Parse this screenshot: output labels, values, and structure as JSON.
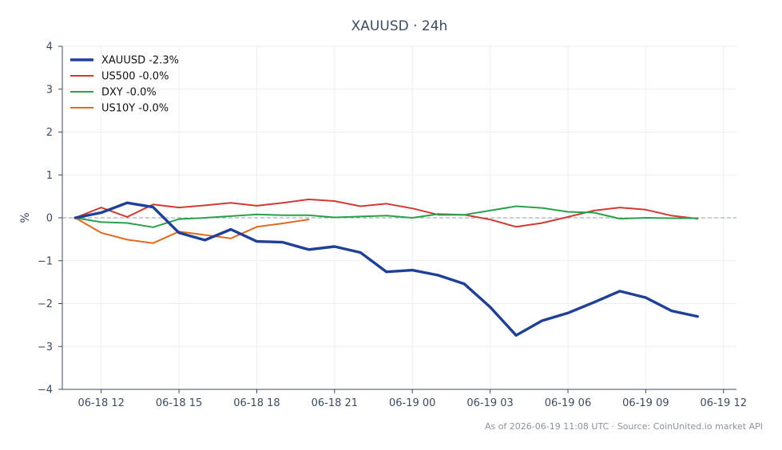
{
  "chart_data": {
    "type": "line",
    "title": "XAUUSD · 24h",
    "ylabel": "%",
    "xlabel": "",
    "ylim": [
      -4,
      4
    ],
    "yticks": [
      4,
      3,
      2,
      1,
      0,
      -1,
      -2,
      -3,
      -4
    ],
    "ytick_labels": [
      "4",
      "3",
      "2",
      "1",
      "0",
      "−1",
      "−2",
      "−3",
      "−4"
    ],
    "xlim": [
      10.5,
      36.5
    ],
    "xticks": [
      12,
      15,
      18,
      21,
      24,
      27,
      30,
      33,
      36
    ],
    "xtick_labels": [
      "06-18 12",
      "06-18 15",
      "06-18 18",
      "06-18 21",
      "06-19 00",
      "06-19 03",
      "06-19 06",
      "06-19 09",
      "06-19 12"
    ],
    "grid": true,
    "legend_position": "top-left",
    "zero_line": true,
    "series": [
      {
        "name": "XAUUSD -2.3%",
        "color": "#1f3f99",
        "emphasis": true,
        "x": [
          11,
          12,
          13,
          14,
          15,
          16,
          17,
          18,
          19,
          20,
          21,
          22,
          23,
          24,
          25,
          26,
          27,
          28,
          29,
          30,
          31,
          32,
          33,
          34,
          35
        ],
        "values": [
          0.0,
          0.12,
          0.35,
          0.25,
          -0.35,
          -0.52,
          -0.27,
          -0.55,
          -0.57,
          -0.74,
          -0.67,
          -0.81,
          -1.26,
          -1.22,
          -1.34,
          -1.54,
          -2.08,
          -2.74,
          -2.4,
          -2.22,
          -1.97,
          -1.71,
          -1.86,
          -2.17,
          -2.3
        ]
      },
      {
        "name": "US500 -0.0%",
        "color": "#d03a32",
        "emphasis": false,
        "x": [
          11,
          12,
          13,
          14,
          15,
          16,
          17,
          18,
          19,
          20,
          21,
          22,
          23,
          24,
          25,
          26,
          27,
          28,
          29,
          30,
          31,
          32,
          33,
          34,
          35
        ],
        "values": [
          0.0,
          0.24,
          0.02,
          0.31,
          0.24,
          0.29,
          0.35,
          0.28,
          0.35,
          0.43,
          0.39,
          0.27,
          0.33,
          0.22,
          0.07,
          0.07,
          -0.04,
          -0.21,
          -0.12,
          0.02,
          0.17,
          0.24,
          0.19,
          0.05,
          -0.02
        ]
      },
      {
        "name": "DXY -0.0%",
        "color": "#2aa04c",
        "emphasis": false,
        "x": [
          11,
          12,
          13,
          14,
          15,
          16,
          17,
          18,
          19,
          20,
          21,
          22,
          23,
          24,
          25,
          26,
          27,
          28,
          29,
          30,
          31,
          32,
          33,
          34,
          35
        ],
        "values": [
          0.0,
          -0.1,
          -0.12,
          -0.22,
          -0.03,
          0.0,
          0.04,
          0.08,
          0.06,
          0.06,
          0.01,
          0.03,
          0.05,
          0.0,
          0.09,
          0.07,
          0.17,
          0.27,
          0.23,
          0.14,
          0.12,
          -0.02,
          0.0,
          -0.01,
          -0.01
        ]
      },
      {
        "name": "US10Y -0.0%",
        "color": "#e06a1e",
        "emphasis": false,
        "x": [
          11,
          12,
          13,
          14,
          15,
          16,
          17,
          18,
          19,
          20
        ],
        "values": [
          0.0,
          -0.35,
          -0.51,
          -0.59,
          -0.32,
          -0.4,
          -0.48,
          -0.21,
          -0.13,
          -0.04
        ]
      }
    ]
  },
  "footer": {
    "caption": "As of 2026-06-19 11:08 UTC · Source: CoinUnited.io market API"
  }
}
